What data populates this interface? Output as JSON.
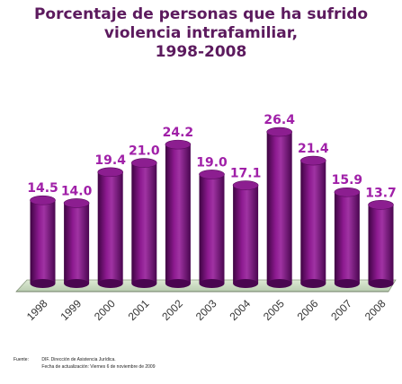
{
  "title_lines": [
    "Porcentaje de personas que ha sufrido",
    "violencia intrafamiliar,",
    "1998-2008"
  ],
  "chart_data": {
    "type": "bar",
    "title": "Porcentaje de personas que ha sufrido violencia intrafamiliar, 1998-2008",
    "categories": [
      "1998",
      "1999",
      "2000",
      "2001",
      "2002",
      "2003",
      "2004",
      "2005",
      "2006",
      "2007",
      "2008"
    ],
    "values": [
      14.5,
      14.0,
      19.4,
      21.0,
      24.2,
      19.0,
      17.1,
      26.4,
      21.4,
      15.9,
      13.7
    ],
    "value_labels": [
      "14.5",
      "14.0",
      "19.4",
      "21.0",
      "24.2",
      "19.0",
      "17.1",
      "26.4",
      "21.4",
      "15.9",
      "13.7"
    ],
    "xlabel": "",
    "ylabel": "",
    "ylim": [
      0,
      30
    ],
    "grid": false,
    "style": "3d-cylinder",
    "colors": {
      "bar": "#7a0f7c",
      "bar_dark": "#4a0650",
      "bar_light": "#a533a8",
      "labels": "#a020a8",
      "floor": "#cfe0c4"
    }
  },
  "source": {
    "label": "Fuente:",
    "line1": "DIF. Dirección de Asistencia Jurídica.",
    "line2": "Fecha de actualización: Viernes 6 de noviembre de 2009"
  }
}
